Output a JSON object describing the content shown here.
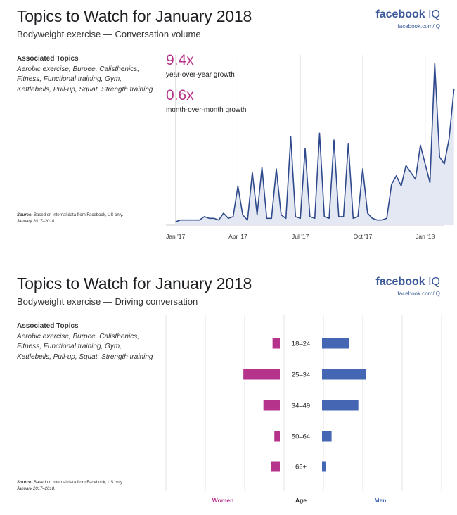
{
  "brand": {
    "name": "facebook",
    "suffix": "IQ",
    "url": "facebook.com/IQ"
  },
  "colors": {
    "line": "#2f4a8c",
    "area": "#e4e8f2",
    "women": "#b5338a",
    "men": "#4566b2",
    "brand": "#3b5998",
    "grid": "#dddddd"
  },
  "panel1": {
    "title": "Topics to Watch for January 2018",
    "subtitle": "Bodyweight exercise — Conversation volume",
    "topics_heading": "Associated Topics",
    "topics_list": "Aerobic exercise, Burpee, Calisthenics, Fitness, Functional training, Gym, Kettlebells, Pull-up, Squat, Strength training",
    "source_label": "Source:",
    "source_text": "Based on internal data from Facebook, US only.",
    "source_period": "January 2017–2018.",
    "stats": [
      {
        "value": "9.4x",
        "label": "year-over-year growth"
      },
      {
        "value": "0.6x",
        "label": "month-over-month growth"
      }
    ]
  },
  "panel2": {
    "title": "Topics to Watch for January 2018",
    "subtitle": "Bodyweight exercise — Driving conversation",
    "topics_heading": "Associated Topics",
    "topics_list": "Aerobic exercise, Burpee, Calisthenics, Fitness, Functional training, Gym, Kettlebells, Pull-up, Squat, Strength training",
    "source_label": "Source:",
    "source_text": "Based on internal data from Facebook, US only.",
    "source_period": "January 2017–2018."
  },
  "chart_data": [
    {
      "type": "area",
      "title": "Bodyweight exercise — Conversation volume",
      "xlabel": "",
      "ylabel": "",
      "x_ticks": [
        {
          "label": "Jan '17",
          "week": 0
        },
        {
          "label": "Apr '17",
          "week": 13
        },
        {
          "label": "Jul '17",
          "week": 26
        },
        {
          "label": "Oct '17",
          "week": 39
        },
        {
          "label": "Jan '18",
          "week": 52
        }
      ],
      "xlim": [
        -2,
        56
      ],
      "ylim": [
        0,
        100
      ],
      "values": [
        2,
        3,
        3,
        3,
        3,
        3,
        5,
        4,
        4,
        3,
        7,
        4,
        5,
        23,
        6,
        3,
        31,
        6,
        34,
        4,
        4,
        33,
        6,
        4,
        52,
        5,
        4,
        45,
        5,
        4,
        54,
        5,
        4,
        50,
        5,
        5,
        48,
        4,
        5,
        33,
        7,
        4,
        3,
        3,
        4,
        24,
        29,
        23,
        35,
        31,
        27,
        47,
        36,
        25,
        95,
        40,
        36,
        51,
        80
      ]
    },
    {
      "type": "bar",
      "orientation": "horizontal-diverging",
      "title": "Bodyweight exercise — Driving conversation",
      "categories": [
        "18–24",
        "25–34",
        "34–49",
        "50–64",
        "65+"
      ],
      "category_label": "Age",
      "series": [
        {
          "name": "Women",
          "values": [
            4,
            20,
            9,
            3,
            5
          ]
        },
        {
          "name": "Men",
          "values": [
            14,
            23,
            19,
            5,
            2
          ]
        }
      ],
      "xlim": [
        0,
        100
      ]
    }
  ]
}
